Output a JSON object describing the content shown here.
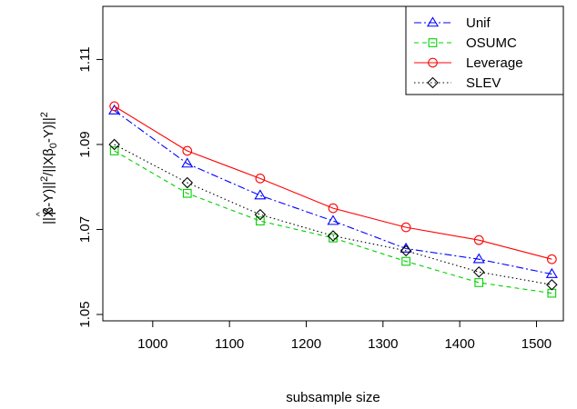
{
  "chart_data": {
    "type": "line",
    "title": "",
    "xlabel": "subsample size",
    "ylabel_parts": {
      "open": "||X",
      "hat": "^",
      "beta": "β",
      "mid1": "-Y)||",
      "sq1": "2",
      "slash": "/||X",
      "beta0": "β",
      "sub0": "0",
      "mid2": "-Y)||",
      "sq2": "2"
    },
    "x": [
      950,
      1045,
      1140,
      1235,
      1330,
      1425,
      1520
    ],
    "xticks": [
      1000,
      1100,
      1200,
      1300,
      1400,
      1500
    ],
    "xtick_labels": [
      "1000",
      "1100",
      "1200",
      "1300",
      "1400",
      "1500"
    ],
    "yticks": [
      1.05,
      1.07,
      1.09,
      1.11
    ],
    "ytick_labels": [
      "1.05",
      "1.07",
      "1.09",
      "1.11"
    ],
    "xlim": [
      935,
      1535
    ],
    "ylim": [
      1.0485,
      1.1225
    ],
    "grid": false,
    "legend_position": "top-right",
    "series": [
      {
        "name": "Unif",
        "color": "#0000ff",
        "marker": "triangle",
        "dash": "8,3,2,3",
        "values": [
          1.098,
          1.0855,
          1.078,
          1.072,
          1.0655,
          1.063,
          1.0595
        ]
      },
      {
        "name": "OSUMC",
        "color": "#00d000",
        "marker": "square",
        "dash": "5,4",
        "values": [
          1.0885,
          1.0785,
          1.072,
          1.068,
          1.0625,
          1.0575,
          1.055
        ]
      },
      {
        "name": "Leverage",
        "color": "#ff0000",
        "marker": "circle",
        "dash": "",
        "values": [
          1.099,
          1.0885,
          1.082,
          1.075,
          1.0705,
          1.0675,
          1.063
        ]
      },
      {
        "name": "SLEV",
        "color": "#000000",
        "marker": "diamond",
        "dash": "1.5,3",
        "values": [
          1.09,
          1.081,
          1.0735,
          1.0685,
          1.065,
          1.06,
          1.057
        ]
      }
    ]
  }
}
